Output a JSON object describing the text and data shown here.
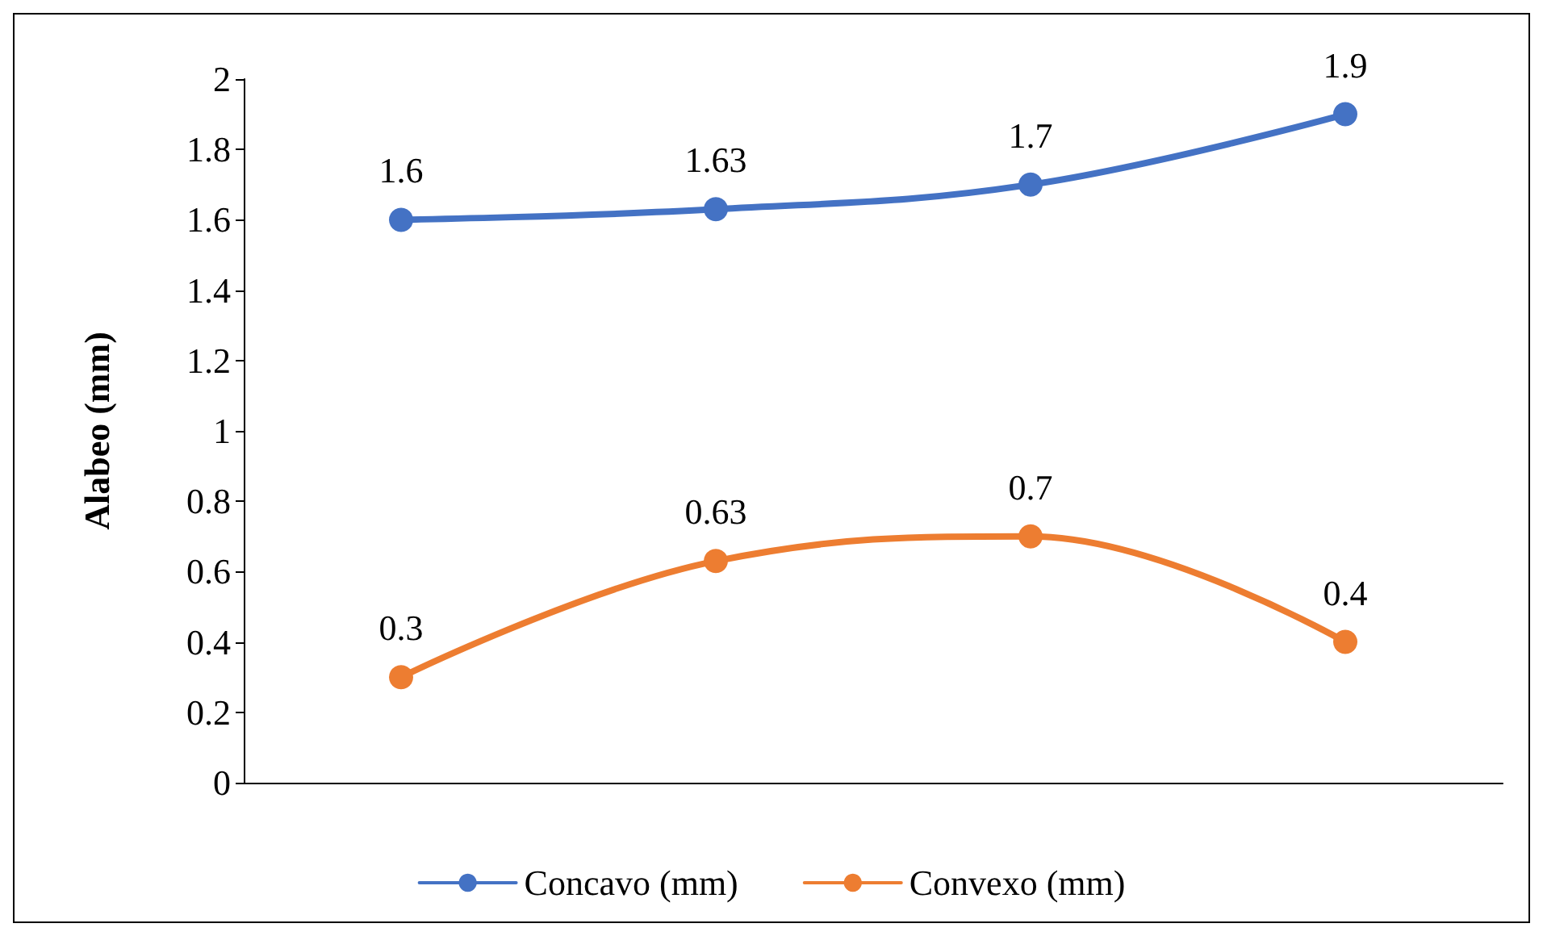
{
  "chart_data": {
    "type": "line",
    "ylabel": "Alabeo (mm)",
    "categories": [
      null,
      null,
      null,
      null
    ],
    "series": [
      {
        "name": "Concavo (mm)",
        "color": "#4472c4",
        "values": [
          1.6,
          1.63,
          1.7,
          1.9
        ]
      },
      {
        "name": "Convexo (mm)",
        "color": "#ed7d31",
        "values": [
          0.3,
          0.63,
          0.7,
          0.4
        ]
      }
    ],
    "ylim": [
      0,
      2
    ],
    "yticks": [
      0,
      0.2,
      0.4,
      0.6,
      0.8,
      1,
      1.2,
      1.4,
      1.6,
      1.8,
      2
    ],
    "grid": false,
    "legend": "bottom",
    "marker": "circle",
    "data_labels": true
  }
}
